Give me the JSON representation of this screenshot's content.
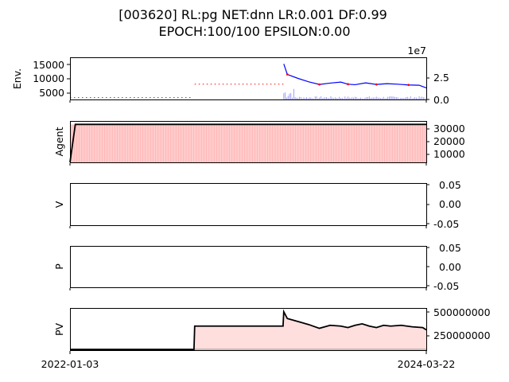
{
  "chart_data": {
    "type": "line",
    "title_line1": "[003620] RL:pg NET:dnn LR:0.001 DF:0.99",
    "title_line2": "EPOCH:100/100 EPSILON:0.00",
    "x_tick_labels": [
      "2022-01-03",
      "2024-03-22"
    ],
    "panels": [
      {
        "id": "env",
        "ylabel": "Env.",
        "left_ticks": [
          "5000",
          "10000",
          "15000"
        ],
        "left_ylim": [
          2500,
          18500
        ],
        "right_ticks": [
          "0.0",
          "2.5"
        ],
        "right_multiplier": "1e7",
        "right_ylim": [
          0,
          50000000
        ],
        "series": [
          {
            "kind": "line",
            "color": "#0000ff",
            "values": [
              {
                "x": 0.6,
                "y": 16000
              },
              {
                "x": 0.61,
                "y": 12000
              },
              {
                "x": 0.64,
                "y": 10500
              },
              {
                "x": 0.67,
                "y": 9200
              },
              {
                "x": 0.7,
                "y": 8200
              },
              {
                "x": 0.73,
                "y": 8700
              },
              {
                "x": 0.76,
                "y": 9100
              },
              {
                "x": 0.78,
                "y": 8300
              },
              {
                "x": 0.8,
                "y": 8100
              },
              {
                "x": 0.83,
                "y": 8800
              },
              {
                "x": 0.86,
                "y": 8200
              },
              {
                "x": 0.89,
                "y": 8500
              },
              {
                "x": 0.92,
                "y": 8300
              },
              {
                "x": 0.95,
                "y": 8000
              },
              {
                "x": 0.98,
                "y": 7900
              },
              {
                "x": 1.0,
                "y": 6900
              }
            ]
          },
          {
            "kind": "dotted",
            "color": "#ff0000",
            "values": [
              {
                "x": 0.0,
                "y": 3200
              },
              {
                "x": 0.345,
                "y": 3200
              },
              {
                "x": 0.35,
                "y": 8300
              },
              {
                "x": 0.6,
                "y": 8300
              }
            ]
          },
          {
            "kind": "volume",
            "color": "#6666ff",
            "note": "volume bars on right axis"
          }
        ]
      },
      {
        "id": "agent",
        "ylabel": "Agent",
        "right_ticks": [
          "10000",
          "20000",
          "30000"
        ],
        "right_ylim": [
          0,
          36000
        ],
        "series": [
          {
            "kind": "line",
            "color": "#000000",
            "values": [
              {
                "x": 0.0,
                "y": 0
              },
              {
                "x": 0.015,
                "y": 33000
              },
              {
                "x": 1.0,
                "y": 33000
              }
            ]
          }
        ]
      },
      {
        "id": "v",
        "ylabel": "V",
        "right_ticks": [
          "-0.05",
          "0.00",
          "0.05"
        ],
        "right_ylim": [
          -0.06,
          0.06
        ],
        "series": []
      },
      {
        "id": "p",
        "ylabel": "P",
        "right_ticks": [
          "-0.05",
          "0.00",
          "0.05"
        ],
        "right_ylim": [
          -0.06,
          0.06
        ],
        "series": []
      },
      {
        "id": "pv",
        "ylabel": "PV",
        "right_ticks": [
          "250000000",
          "500000000"
        ],
        "right_ylim": [
          0,
          560000000
        ],
        "series": [
          {
            "kind": "line",
            "color": "#000000",
            "values": [
              {
                "x": 0.0,
                "y": 10000000
              },
              {
                "x": 0.348,
                "y": 10000000
              },
              {
                "x": 0.35,
                "y": 320000000
              },
              {
                "x": 0.598,
                "y": 320000000
              },
              {
                "x": 0.6,
                "y": 510000000
              },
              {
                "x": 0.61,
                "y": 420000000
              },
              {
                "x": 0.64,
                "y": 380000000
              },
              {
                "x": 0.67,
                "y": 340000000
              },
              {
                "x": 0.7,
                "y": 290000000
              },
              {
                "x": 0.73,
                "y": 330000000
              },
              {
                "x": 0.76,
                "y": 320000000
              },
              {
                "x": 0.78,
                "y": 300000000
              },
              {
                "x": 0.8,
                "y": 330000000
              },
              {
                "x": 0.82,
                "y": 350000000
              },
              {
                "x": 0.84,
                "y": 320000000
              },
              {
                "x": 0.86,
                "y": 300000000
              },
              {
                "x": 0.88,
                "y": 330000000
              },
              {
                "x": 0.9,
                "y": 320000000
              },
              {
                "x": 0.93,
                "y": 330000000
              },
              {
                "x": 0.96,
                "y": 310000000
              },
              {
                "x": 0.99,
                "y": 300000000
              },
              {
                "x": 1.0,
                "y": 270000000
              }
            ]
          }
        ]
      }
    ]
  }
}
